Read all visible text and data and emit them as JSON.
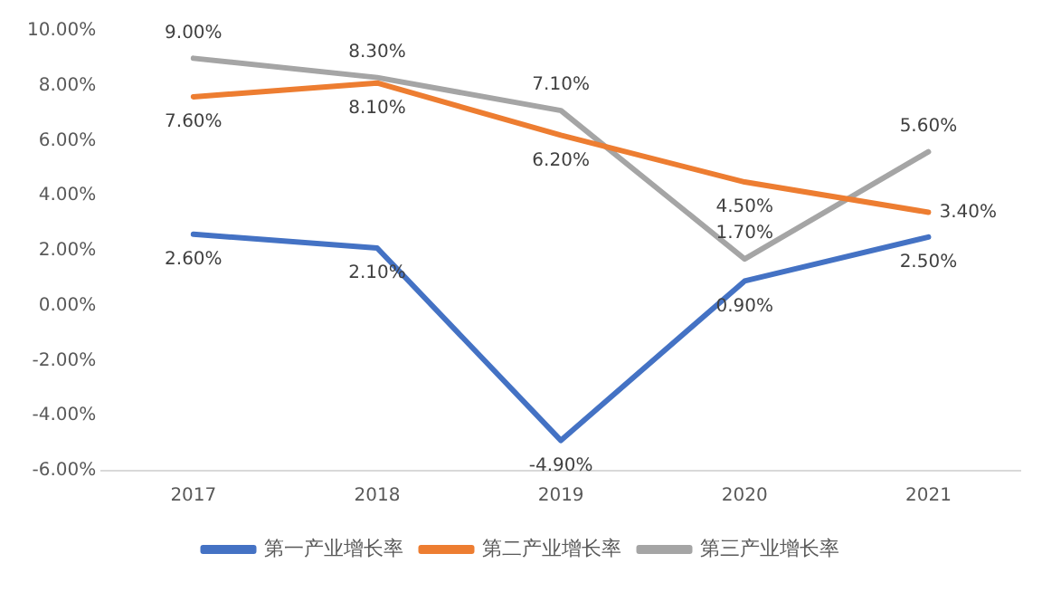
{
  "chart_data": {
    "type": "line",
    "categories": [
      "2017",
      "2018",
      "2019",
      "2020",
      "2021"
    ],
    "series": [
      {
        "name": "第一产业增长率",
        "color": "#4472c4",
        "values": [
          2.6,
          2.1,
          -4.9,
          0.9,
          2.5
        ],
        "value_labels": [
          "2.60%",
          "2.10%",
          "-4.90%",
          "0.90%",
          "2.50%"
        ]
      },
      {
        "name": "第二产业增长率",
        "color": "#ed7d31",
        "values": [
          7.6,
          8.1,
          6.2,
          4.5,
          3.4
        ],
        "value_labels": [
          "7.60%",
          "8.10%",
          "6.20%",
          "4.50%",
          "3.40%"
        ]
      },
      {
        "name": "第三产业增长率",
        "color": "#a5a5a5",
        "values": [
          9.0,
          8.3,
          7.1,
          1.7,
          5.6
        ],
        "value_labels": [
          "9.00%",
          "8.30%",
          "7.10%",
          "1.70%",
          "5.60%"
        ]
      }
    ],
    "ylim": [
      -6,
      10
    ],
    "yticks": [
      {
        "value": -6,
        "label": "-6.00%"
      },
      {
        "value": -4,
        "label": "-4.00%"
      },
      {
        "value": -2,
        "label": "-2.00%"
      },
      {
        "value": 0,
        "label": "0.00%"
      },
      {
        "value": 2,
        "label": "2.00%"
      },
      {
        "value": 4,
        "label": "4.00%"
      },
      {
        "value": 6,
        "label": "6.00%"
      },
      {
        "value": 8,
        "label": "8.00%"
      },
      {
        "value": 10,
        "label": "10.00%"
      }
    ],
    "grid": false,
    "legend": "bottom",
    "marker": "none",
    "line_style": "solid"
  }
}
